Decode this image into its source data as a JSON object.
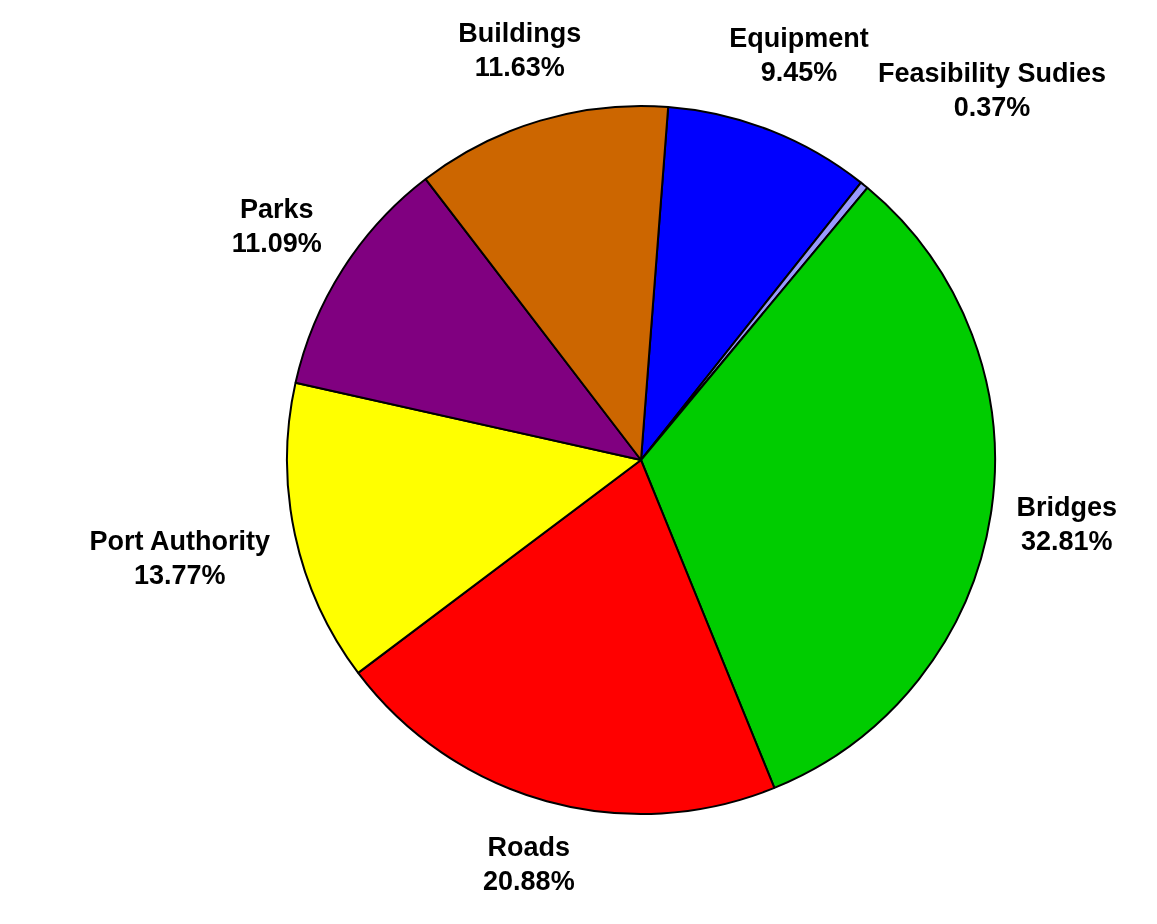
{
  "chart_data": {
    "type": "pie",
    "categories": [
      "Equipment",
      "Feasibility Sudies",
      "Bridges",
      "Roads",
      "Port Authority",
      "Parks",
      "Buildings"
    ],
    "values": [
      9.45,
      0.37,
      32.81,
      20.88,
      13.77,
      11.09,
      11.63
    ],
    "value_labels": [
      "9.45%",
      "0.37%",
      "32.81%",
      "20.88%",
      "13.77%",
      "11.09%",
      "11.63%"
    ],
    "colors": [
      "#0000ff",
      "#9999ff",
      "#00cc00",
      "#ff0000",
      "#ffff00",
      "#800080",
      "#cc6600"
    ],
    "legend": false
  }
}
